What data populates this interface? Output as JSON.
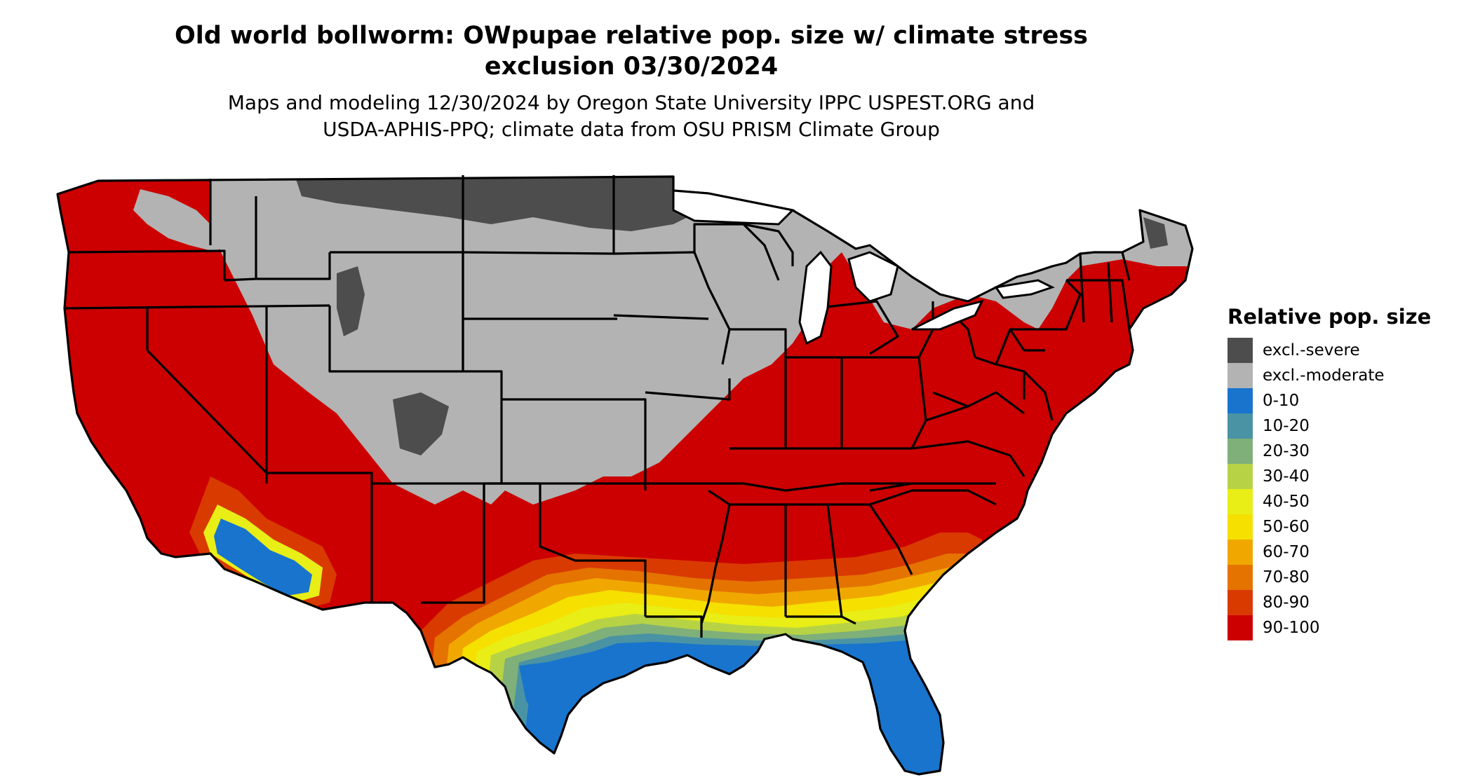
{
  "title_line1": "Old world bollworm: OWpupae relative pop. size w/ climate stress",
  "title_line2": "exclusion 03/30/2024",
  "subtitle_line1": "Maps and modeling 12/30/2024 by Oregon State University IPPC USPEST.ORG and",
  "subtitle_line2": "USDA-APHIS-PPQ; climate data from OSU PRISM Climate Group",
  "legend": {
    "title": "Relative pop. size",
    "items": [
      {
        "label": "excl.-severe",
        "color": "#4d4d4d"
      },
      {
        "label": "excl.-moderate",
        "color": "#b3b3b3"
      },
      {
        "label": "0-10",
        "color": "#1874cd"
      },
      {
        "label": "10-20",
        "color": "#4a93a4"
      },
      {
        "label": "20-30",
        "color": "#7fb07a"
      },
      {
        "label": "30-40",
        "color": "#b7d345"
      },
      {
        "label": "40-50",
        "color": "#e8ee16"
      },
      {
        "label": "50-60",
        "color": "#f5e000"
      },
      {
        "label": "60-70",
        "color": "#f0a800"
      },
      {
        "label": "70-80",
        "color": "#e57300"
      },
      {
        "label": "80-90",
        "color": "#d93a00"
      },
      {
        "label": "90-100",
        "color": "#cc0000"
      }
    ]
  }
}
